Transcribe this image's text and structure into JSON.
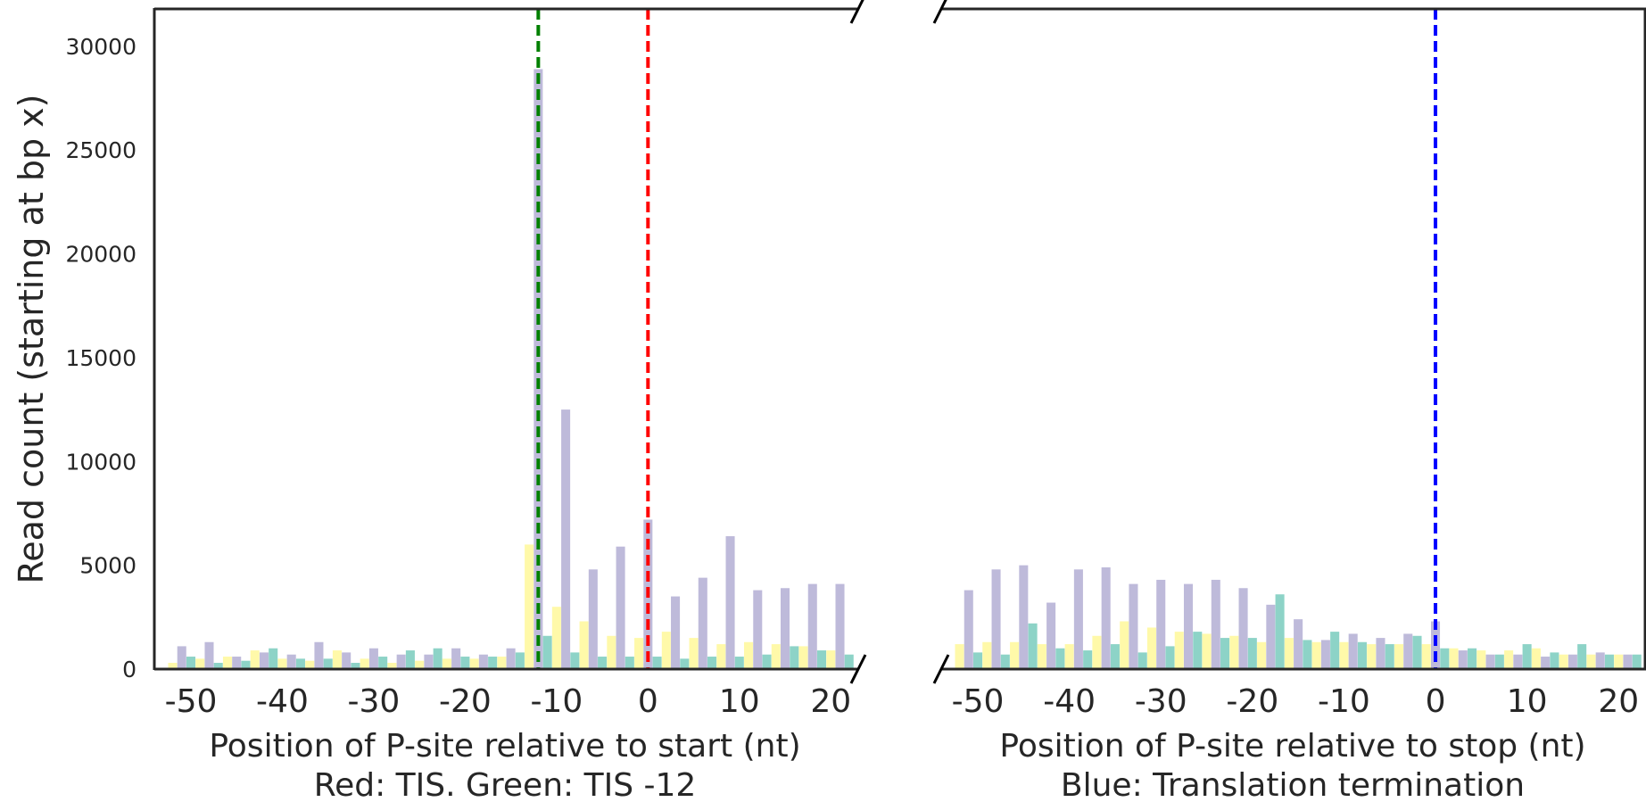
{
  "chart_data": [
    {
      "type": "bar",
      "panel": "left",
      "xlabel": "Position of P-site relative to start (nt)",
      "subtitle": "Red: TIS. Green: TIS -12",
      "ylabel": "Read count (starting at bp x)",
      "xlim": [
        -54,
        23
      ],
      "ylim": [
        0,
        31800
      ],
      "x_ticks": [
        "-50",
        "-40",
        "-30",
        "-20",
        "-10",
        "0",
        "10",
        "20"
      ],
      "y_ticks": [
        "0",
        "5000",
        "10000",
        "15000",
        "20000",
        "25000",
        "30000"
      ],
      "grid": false,
      "x": [
        -51,
        -48,
        -45,
        -42,
        -39,
        -36,
        -33,
        -30,
        -27,
        -24,
        -21,
        -18,
        -15,
        -12,
        -9,
        -6,
        -3,
        0,
        3,
        6,
        9,
        12,
        15,
        18,
        21
      ],
      "series": [
        {
          "color": "#fff9a9",
          "values": [
            300,
            500,
            600,
            900,
            500,
            400,
            900,
            500,
            300,
            400,
            500,
            500,
            600,
            6000,
            3000,
            2300,
            1600,
            1500,
            1800,
            1500,
            1200,
            1300,
            1200,
            1100,
            900
          ]
        },
        {
          "color": "#bebada",
          "values": [
            1100,
            1300,
            600,
            800,
            700,
            1300,
            800,
            1000,
            700,
            700,
            1000,
            700,
            1000,
            28900,
            12500,
            4800,
            5900,
            7200,
            3500,
            4400,
            6400,
            3800,
            3900,
            4100,
            4100
          ]
        },
        {
          "color": "#8dd3c7",
          "values": [
            600,
            300,
            400,
            1000,
            500,
            500,
            300,
            600,
            900,
            1000,
            600,
            600,
            800,
            1600,
            800,
            600,
            600,
            600,
            500,
            600,
            600,
            700,
            1100,
            900,
            700
          ]
        }
      ],
      "reference_lines": [
        {
          "x": -12,
          "color": "#008000",
          "style": "dashed"
        },
        {
          "x": 0,
          "color": "#ff0000",
          "style": "dashed"
        }
      ]
    },
    {
      "type": "bar",
      "panel": "right",
      "xlabel": "Position of P-site relative to stop (nt)",
      "subtitle": "Blue: Translation termination",
      "xlim": [
        -54,
        23
      ],
      "ylim": [
        0,
        31800
      ],
      "x_ticks": [
        "-50",
        "-40",
        "-30",
        "-20",
        "-10",
        "0",
        "10",
        "20"
      ],
      "grid": false,
      "x": [
        -51,
        -48,
        -45,
        -42,
        -39,
        -36,
        -33,
        -30,
        -27,
        -24,
        -21,
        -18,
        -15,
        -12,
        -9,
        -6,
        -3,
        0,
        3,
        6,
        9,
        12,
        15,
        18,
        21
      ],
      "series": [
        {
          "color": "#fff9a9",
          "values": [
            1200,
            1300,
            1300,
            1200,
            1200,
            1600,
            2300,
            2000,
            1800,
            1700,
            1600,
            1300,
            1500,
            1300,
            1300,
            1200,
            1200,
            1200,
            1000,
            900,
            900,
            1000,
            700,
            700,
            700
          ]
        },
        {
          "color": "#bebada",
          "values": [
            3800,
            4800,
            5000,
            3200,
            4800,
            4900,
            4100,
            4300,
            4100,
            4300,
            3900,
            3100,
            2400,
            1400,
            1700,
            1500,
            1700,
            2300,
            900,
            700,
            700,
            600,
            700,
            800,
            700
          ]
        },
        {
          "color": "#8dd3c7",
          "values": [
            800,
            700,
            2200,
            1000,
            900,
            1200,
            800,
            1100,
            1800,
            1500,
            1500,
            3600,
            1400,
            1800,
            1300,
            1200,
            1600,
            1000,
            1000,
            700,
            1200,
            800,
            1200,
            700,
            700
          ]
        }
      ],
      "reference_lines": [
        {
          "x": 0,
          "color": "#0000ff",
          "style": "dashed"
        }
      ]
    }
  ]
}
